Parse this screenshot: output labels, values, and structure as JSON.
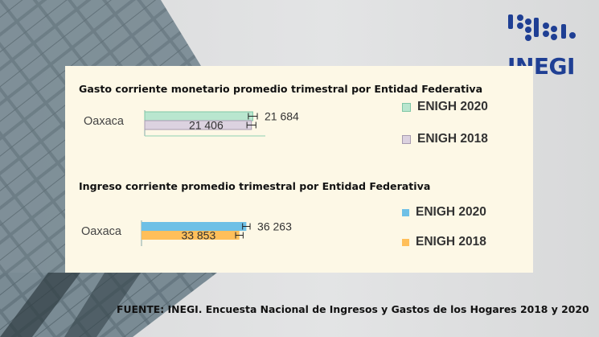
{
  "brand": {
    "name": "INEGI",
    "color": "#1f3f94"
  },
  "source_note": "FUENTE: INEGI. Encuesta Nacional de Ingresos y Gastos de los Hogares 2018 y 2020",
  "chart_data": [
    {
      "type": "bar",
      "orientation": "horizontal",
      "title": "Gasto corriente monetario promedio trimestral por Entidad Federativa",
      "categories": [
        "Oaxaca"
      ],
      "series": [
        {
          "name": "ENIGH 2020",
          "values": [
            21684
          ],
          "label": "21 684",
          "color": "#b9e6cf",
          "error": 900
        },
        {
          "name": "ENIGH 2018",
          "values": [
            21406
          ],
          "label": "21 406",
          "color": "#dcd2e0",
          "error": 900
        }
      ],
      "xlim": [
        0,
        25000
      ],
      "grid": false
    },
    {
      "type": "bar",
      "orientation": "horizontal",
      "title": "Ingreso corriente promedio trimestral por Entidad Federativa",
      "categories": [
        "Oaxaca"
      ],
      "series": [
        {
          "name": "ENIGH 2020",
          "values": [
            36263
          ],
          "label": "36 263",
          "color": "#6ec0e6",
          "error": 1300
        },
        {
          "name": "ENIGH 2018",
          "values": [
            33853
          ],
          "label": "33 853",
          "color": "#ffbf5a",
          "error": 1300
        }
      ],
      "xlim": [
        0,
        42000
      ],
      "grid": false
    }
  ]
}
